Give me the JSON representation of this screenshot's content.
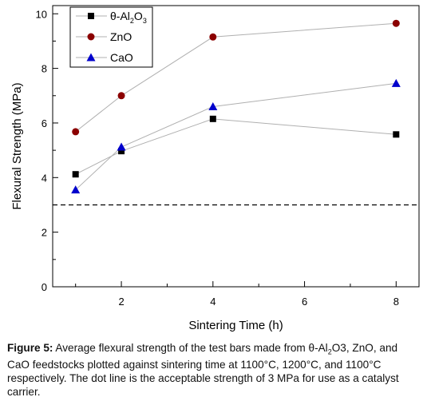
{
  "chart_data": {
    "type": "line",
    "xlabel": "Sintering Time (h)",
    "ylabel": "Flexural Strength (MPa)",
    "xlim": [
      0.5,
      8.5
    ],
    "ylim": [
      0,
      10.3
    ],
    "xticks": [
      2,
      4,
      6,
      8
    ],
    "yticks": [
      0,
      2,
      4,
      6,
      8,
      10
    ],
    "x": [
      1,
      2,
      4,
      8
    ],
    "grid": false,
    "legend_position": "top-left",
    "series": [
      {
        "name_parts": [
          "θ-Al",
          "2",
          "O",
          "3"
        ],
        "marker": "square",
        "color": "#000000",
        "values": [
          4.12,
          4.97,
          6.15,
          5.58
        ]
      },
      {
        "name": "ZnO",
        "marker": "circle",
        "color": "#8B0000",
        "values": [
          5.68,
          7.0,
          9.15,
          9.65
        ]
      },
      {
        "name": "CaO",
        "marker": "triangle",
        "color": "#0000CC",
        "values": [
          3.55,
          5.12,
          6.6,
          7.45
        ]
      }
    ],
    "reference_line": {
      "y": 3,
      "style": "dashed",
      "color": "#000000"
    },
    "line_color": "#b0b0b0"
  },
  "caption": {
    "label": "Figure 5:",
    "part1": " Average flexural strength of the test bars made from θ-Al",
    "sub": "2",
    "part2": "O3, ZnO, and CaO feedstocks plotted against sintering time at 1100°C, 1200°C, and 1100°C respectively. The dot line is the acceptable strength of 3 MPa for use as a catalyst carrier."
  }
}
